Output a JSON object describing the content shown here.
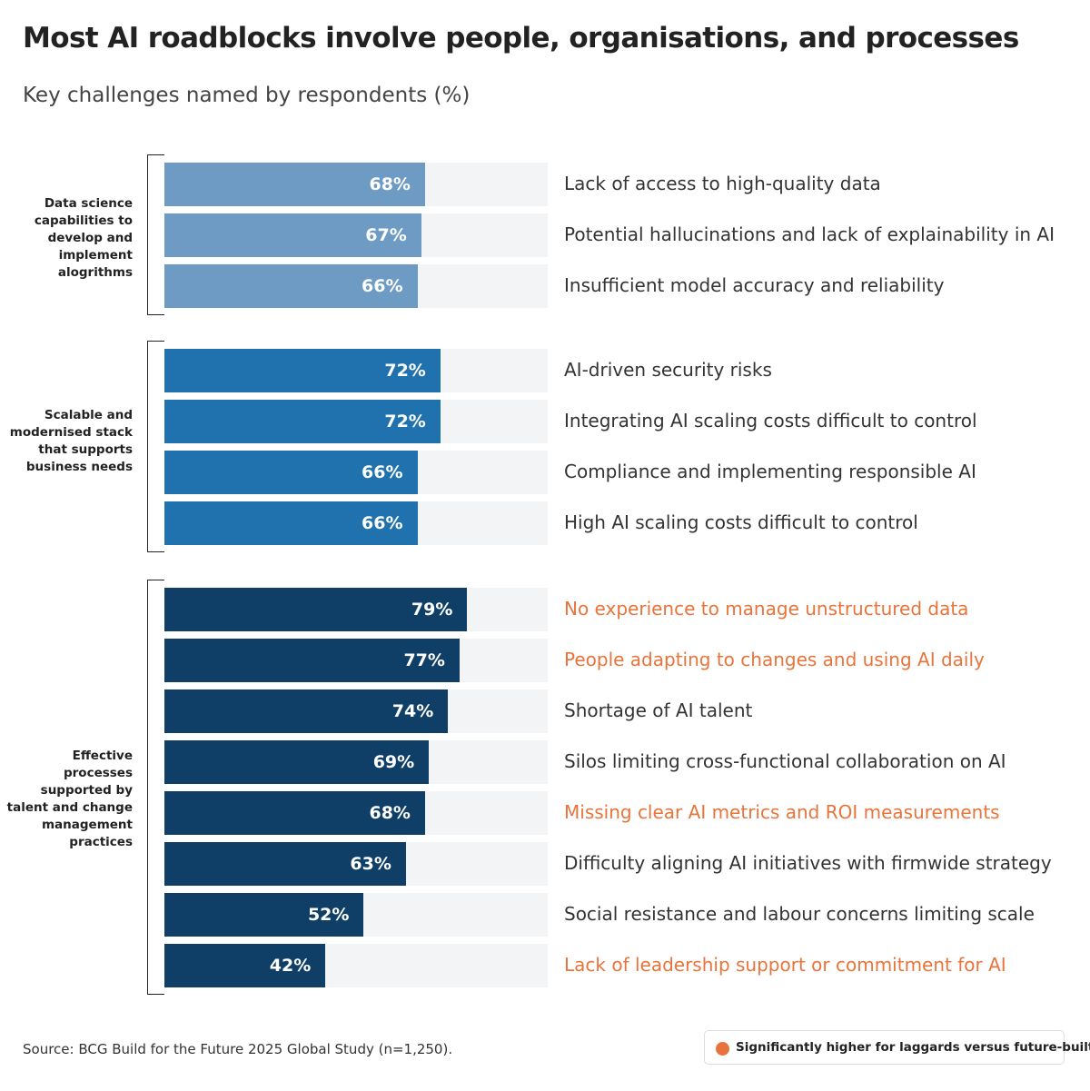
{
  "chart_data": {
    "type": "bar",
    "orientation": "horizontal",
    "title": "Most AI roadblocks involve people, organisations, and processes",
    "subtitle": "Key challenges named by respondents (%)",
    "xlim": [
      0,
      100
    ],
    "grid": false,
    "groups": [
      {
        "label": "Data science capabilities to develop and implement alogrithms",
        "color": "#6e9bc4",
        "items": [
          {
            "category": "Lack of access to high-quality data",
            "value": 68,
            "highlight": false
          },
          {
            "category": "Potential hallucinations and lack of explainability in AI",
            "value": 67,
            "highlight": false
          },
          {
            "category": "Insufficient model accuracy and reliability",
            "value": 66,
            "highlight": false
          }
        ]
      },
      {
        "label": "Scalable and modernised stack that supports business needs",
        "color": "#1f72ad",
        "items": [
          {
            "category": "AI-driven security risks",
            "value": 72,
            "highlight": false
          },
          {
            "category": "Integrating AI scaling costs difficult to control",
            "value": 72,
            "highlight": false
          },
          {
            "category": "Compliance and implementing responsible AI",
            "value": 66,
            "highlight": false
          },
          {
            "category": "High AI scaling costs difficult to control",
            "value": 66,
            "highlight": false
          }
        ]
      },
      {
        "label": "Effective processes supported by talent and change management practices",
        "color": "#0f3f66",
        "items": [
          {
            "category": "No experience to manage unstructured data",
            "value": 79,
            "highlight": true
          },
          {
            "category": "People adapting to changes and using AI daily",
            "value": 77,
            "highlight": true
          },
          {
            "category": "Shortage of AI talent",
            "value": 74,
            "highlight": false
          },
          {
            "category": "Silos limiting cross-functional collaboration on AI",
            "value": 69,
            "highlight": false
          },
          {
            "category": "Missing clear AI metrics and ROI measurements",
            "value": 68,
            "highlight": true
          },
          {
            "category": "Difficulty aligning AI initiatives with firmwide strategy",
            "value": 63,
            "highlight": false
          },
          {
            "category": "Social resistance and labour concerns limiting scale",
            "value": 52,
            "highlight": false
          },
          {
            "category": "Lack of leadership support or commitment for AI",
            "value": 42,
            "highlight": true
          }
        ]
      }
    ],
    "value_suffix": "%",
    "highlight_color": "#e8743b",
    "background_track_color": "#f3f4f6",
    "legend": {
      "text": "Significantly higher for laggards versus future-built",
      "placement": "bottom-right"
    },
    "source": "Source: BCG Build for the Future 2025 Global Study (n=1,250)."
  }
}
